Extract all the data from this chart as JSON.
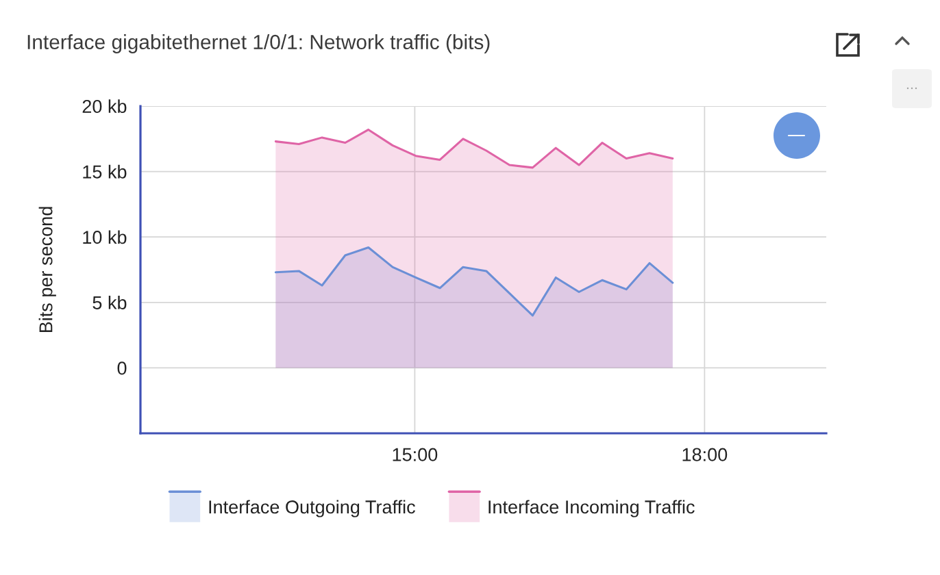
{
  "chart_data": {
    "type": "area",
    "title": "Interface gigabitethernet 1/0/1: Network traffic (bits)",
    "ylabel": "Bits per second",
    "x": [
      13.56,
      13.8,
      14.04,
      14.28,
      14.52,
      14.77,
      15.01,
      15.26,
      15.5,
      15.74,
      15.98,
      16.22,
      16.46,
      16.7,
      16.94,
      17.19,
      17.43,
      17.67
    ],
    "series": [
      {
        "name": "Interface Outgoing Traffic",
        "color": "#6b8fd6",
        "values": [
          7.3,
          7.4,
          6.3,
          8.6,
          9.2,
          7.7,
          6.9,
          6.1,
          7.7,
          7.4,
          5.7,
          4.0,
          6.9,
          5.8,
          6.7,
          6.0,
          8.0,
          6.5
        ]
      },
      {
        "name": "Interface Incoming Traffic",
        "color": "#df64a6",
        "values": [
          17.3,
          17.1,
          17.6,
          17.2,
          18.2,
          17.0,
          16.2,
          15.9,
          17.5,
          16.6,
          15.5,
          15.3,
          16.8,
          15.5,
          17.2,
          16.0,
          16.4,
          16.0
        ]
      }
    ],
    "xlim": [
      12.16,
      19.26
    ],
    "xticks": [
      {
        "value": 15,
        "label": "15:00"
      },
      {
        "value": 18,
        "label": "18:00"
      }
    ],
    "ylim": [
      -5,
      20
    ],
    "yticks": [
      0,
      {
        "value": 5,
        "label": "5 kb"
      },
      {
        "value": 10,
        "label": "10 kb"
      },
      {
        "value": 15,
        "label": "15 kb"
      },
      {
        "value": 20,
        "label": "20 kb"
      }
    ],
    "grid": true,
    "legend": "bottom"
  }
}
